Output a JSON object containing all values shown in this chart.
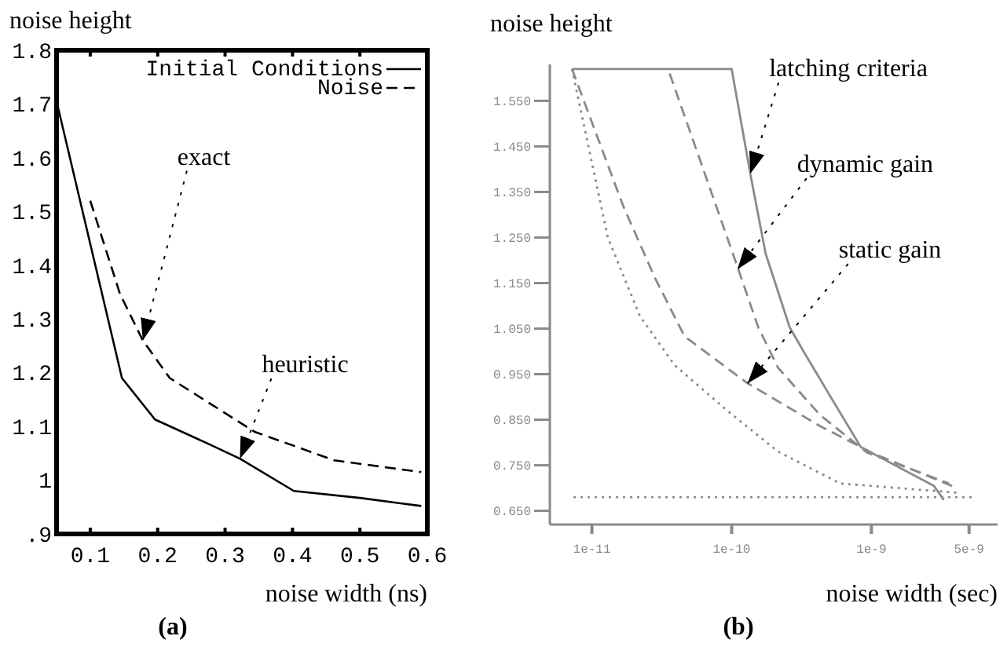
{
  "chart_data": [
    {
      "type": "line",
      "ylabel": "noise height",
      "xlabel": "noise width (ns)",
      "xlim": [
        0.05,
        0.6
      ],
      "ylim": [
        0.9,
        1.8
      ],
      "xticks": [
        0.1,
        0.2,
        0.3,
        0.4,
        0.5,
        0.6
      ],
      "yticks": [
        {
          "value": 0.9,
          "label": ".9"
        },
        1,
        1.1,
        1.2,
        1.3,
        1.4,
        1.5,
        1.6,
        1.7,
        1.8
      ],
      "grid": false,
      "legend": "top right",
      "series": [
        {
          "name": "Initial Conditions",
          "color": "#000000",
          "line_style": "solid",
          "x": [
            0.051,
            0.147,
            0.196,
            0.278,
            0.322,
            0.402,
            0.5,
            0.591
          ],
          "values": [
            1.7,
            1.19,
            1.113,
            1.066,
            1.04,
            0.98,
            0.967,
            0.952
          ]
        },
        {
          "name": "Noise",
          "color": "#000000",
          "line_style": "dashed",
          "x": [
            0.1,
            0.144,
            0.178,
            0.218,
            0.344,
            0.462,
            0.591
          ],
          "values": [
            1.52,
            1.347,
            1.26,
            1.19,
            1.09,
            1.037,
            1.015
          ]
        }
      ],
      "annotations": [
        {
          "text": "exact",
          "x": 0.178,
          "y": 1.26
        },
        {
          "text": "heuristic",
          "x": 0.322,
          "y": 1.04
        },
        "(a)"
      ]
    },
    {
      "type": "line",
      "ylabel": "noise height",
      "xlabel": "noise width (sec)",
      "log": "x",
      "xlim": [
        5e-12,
        8e-09
      ],
      "ylim": [
        0.62,
        1.63
      ],
      "xticks": [
        {
          "value": 1e-11,
          "label": "1e-11"
        },
        {
          "value": 1e-10,
          "label": "1e-10"
        },
        {
          "value": 1e-09,
          "label": "1e-9"
        },
        {
          "value": 5e-09,
          "label": "5e-9"
        }
      ],
      "yticks": [
        {
          "value": 0.65,
          "label": "0.650"
        },
        {
          "value": 0.75,
          "label": "0.750"
        },
        {
          "value": 0.85,
          "label": "0.850"
        },
        {
          "value": 0.95,
          "label": "0.950"
        },
        {
          "value": 1.05,
          "label": "1.050"
        },
        {
          "value": 1.15,
          "label": "1.150"
        },
        {
          "value": 1.25,
          "label": "1.250"
        },
        {
          "value": 1.35,
          "label": "1.350"
        },
        {
          "value": 1.45,
          "label": "1.450"
        },
        {
          "value": 1.55,
          "label": "1.550"
        }
      ],
      "grid": false,
      "series": [
        {
          "color": "#8a8a8a",
          "line_style": "solid",
          "x": [
            7.2e-12,
            1e-10,
            1.36e-10,
            1.75e-10,
            2.6e-10,
            3.3e-10,
            5e-10,
            8.4e-10,
            2.8e-09,
            3.3e-09
          ],
          "values": [
            1.62,
            1.62,
            1.39,
            1.215,
            1.053,
            0.998,
            0.905,
            0.79,
            0.705,
            0.674
          ]
        },
        {
          "color": "#8a8a8a",
          "line_style": "dashed",
          "x": [
            3.6e-11,
            1.08e-10,
            1.55e-10,
            2.15e-10,
            4.3e-10,
            9.3e-10,
            3.6e-09
          ],
          "values": [
            1.61,
            1.193,
            1.053,
            0.964,
            0.86,
            0.778,
            0.71
          ]
        },
        {
          "color": "#8a8a8a",
          "line_style": "dashed",
          "x": [
            7.2e-12,
            1.67e-11,
            2.8e-11,
            4.6e-11,
            1.3e-10,
            4.3e-10,
            1e-09,
            4.1e-09
          ],
          "values": [
            1.62,
            1.32,
            1.164,
            1.033,
            0.93,
            0.836,
            0.778,
            0.7
          ]
        },
        {
          "color": "#8a8a8a",
          "line_style": "dotted",
          "x": [
            7.2e-12,
            1.3e-11,
            2.2e-11,
            3.9e-11,
            9.3e-11,
            2.15e-10,
            6e-10,
            4.1e-09
          ],
          "values": [
            1.62,
            1.25,
            1.078,
            0.97,
            0.87,
            0.78,
            0.71,
            0.69
          ]
        }
      ],
      "ref_lines": [
        {
          "axis": "y",
          "value": 0.68,
          "color": "#8a8a8a",
          "line_style": "dotted"
        }
      ],
      "annotations": [
        {
          "text": "latching criteria",
          "x": 1.36e-10,
          "y": 1.39
        },
        {
          "text": "dynamic gain",
          "x": 1.1e-10,
          "y": 1.18
        },
        {
          "text": "static gain",
          "x": 1.3e-10,
          "y": 0.93
        },
        "(b)"
      ]
    }
  ]
}
